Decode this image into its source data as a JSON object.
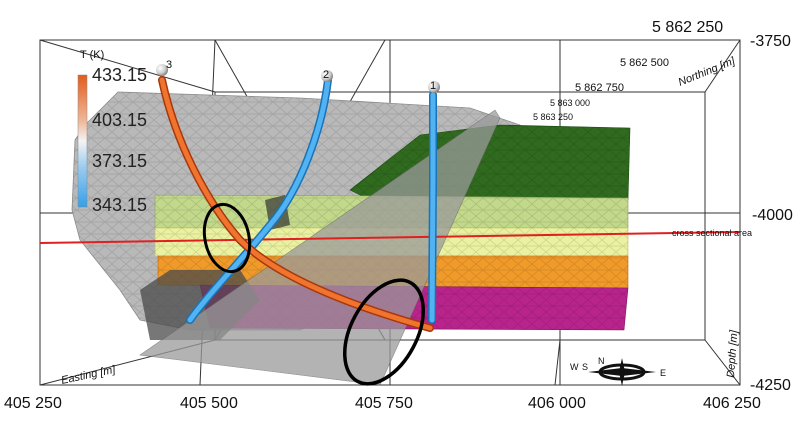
{
  "legend": {
    "title": "T (K)",
    "ticks": [
      "433.15",
      "403.15",
      "373.15",
      "343.15"
    ]
  },
  "wells": [
    {
      "id": "1"
    },
    {
      "id": "2"
    },
    {
      "id": "3"
    }
  ],
  "axes": {
    "easting": {
      "title": "Easting [m]",
      "ticks": [
        "405 250",
        "405 500",
        "405 750",
        "406 000",
        "406 250"
      ]
    },
    "northing": {
      "title": "Northing [m]",
      "ticks": [
        "5 862 250",
        "5 862 500",
        "5 862 750",
        "5 863 000",
        "5 863 250"
      ]
    },
    "depth": {
      "title": "Depth [m]",
      "ticks": [
        "-3750",
        "-4000",
        "-4250"
      ]
    }
  },
  "annotation": "cross sectional area",
  "compass": {
    "east": "E",
    "west": "W",
    "north": "N",
    "south": "S"
  },
  "colors": {
    "hot": "#e25c1c",
    "cold": "#33a0ea",
    "layer_dark_green": "#2f6a1e",
    "layer_light_green": "#c2d88a",
    "layer_yellow": "#eaf1a0",
    "layer_orange": "#f09a2a",
    "layer_magenta": "#b8248c",
    "section_line": "#e02020"
  }
}
